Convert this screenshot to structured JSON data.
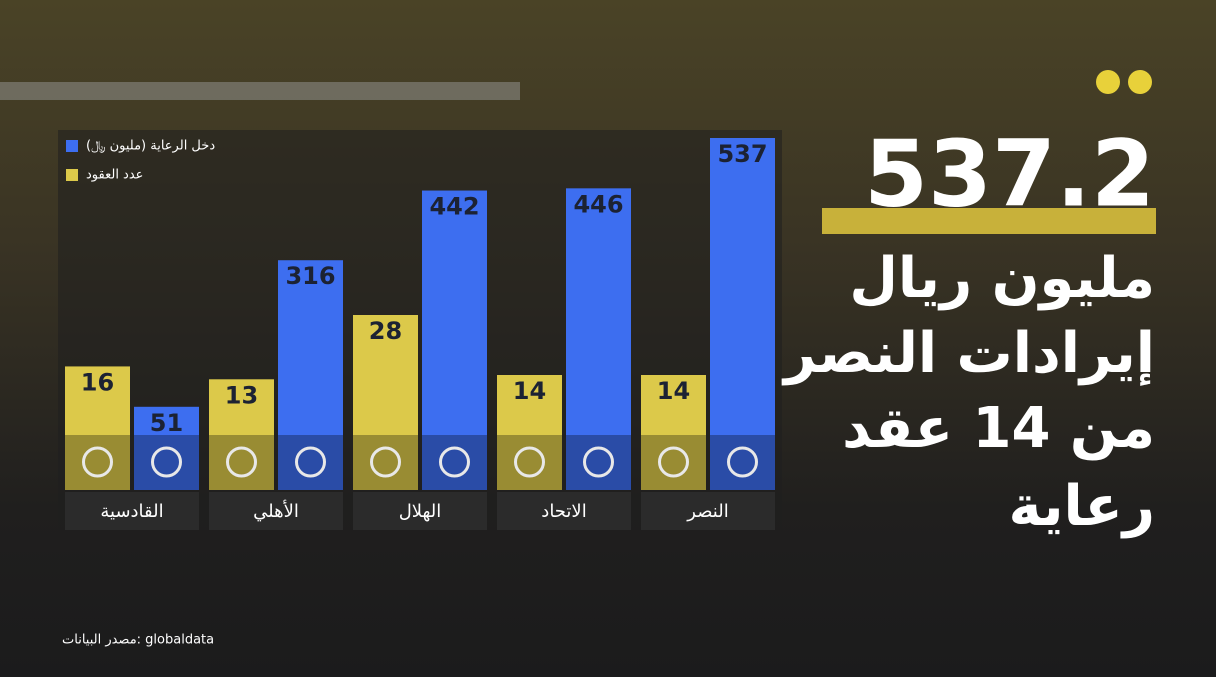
{
  "chart_data": {
    "type": "bar",
    "categories": [
      "النصر",
      "الاتحاد",
      "الهلال",
      "الأهلي",
      "القادسية"
    ],
    "series": [
      {
        "name": "دخل الرعاية (مليون ﷼)",
        "color": "#3d6ef0",
        "values": [
          537,
          446,
          442,
          316,
          51
        ]
      },
      {
        "name": "عدد العقود",
        "color": "#dcc94a",
        "values": [
          14,
          14,
          28,
          13,
          16
        ]
      }
    ]
  },
  "headline": {
    "number": "537.2",
    "lines": [
      "مليون ريال",
      "إيرادات النصر",
      "من 14 عقد",
      "رعاية"
    ]
  },
  "source": "مصدر البيانات: globaldata"
}
